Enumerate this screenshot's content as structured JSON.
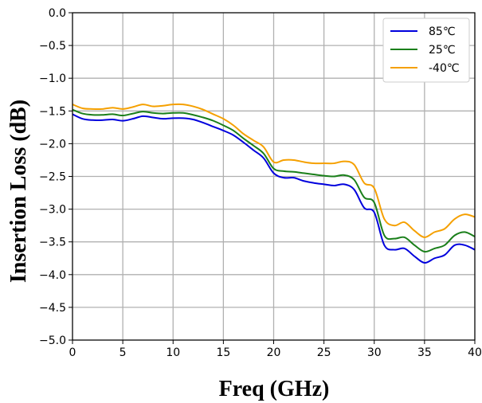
{
  "chart_data": {
    "type": "line",
    "title": "",
    "xlabel": "Freq (GHz)",
    "ylabel": "Insertion Loss (dB)",
    "xlim": [
      0,
      40
    ],
    "ylim": [
      -5.0,
      0.0
    ],
    "xticks": [
      0,
      5,
      10,
      15,
      20,
      25,
      30,
      35,
      40
    ],
    "xtick_labels": [
      "0",
      "5",
      "10",
      "15",
      "20",
      "25",
      "30",
      "35",
      "40"
    ],
    "yticks": [
      0.0,
      -0.5,
      -1.0,
      -1.5,
      -2.0,
      -2.5,
      -3.0,
      -3.5,
      -4.0,
      -4.5,
      -5.0
    ],
    "ytick_labels": [
      "0.0",
      "−0.5",
      "−1.0",
      "−1.5",
      "−2.0",
      "−2.5",
      "−3.0",
      "−3.5",
      "−4.0",
      "−4.5",
      "−5.0"
    ],
    "grid": true,
    "legend_position": "top-right",
    "x": [
      0,
      1,
      2,
      3,
      4,
      5,
      6,
      7,
      8,
      9,
      10,
      11,
      12,
      13,
      14,
      15,
      16,
      17,
      18,
      19,
      20,
      21,
      22,
      23,
      24,
      25,
      26,
      27,
      28,
      29,
      30,
      31,
      32,
      33,
      34,
      35,
      36,
      37,
      38,
      39,
      40
    ],
    "series": [
      {
        "name": "85℃",
        "color": "#0000dd",
        "values": [
          -1.55,
          -1.62,
          -1.64,
          -1.64,
          -1.63,
          -1.65,
          -1.62,
          -1.58,
          -1.6,
          -1.62,
          -1.61,
          -1.61,
          -1.63,
          -1.68,
          -1.74,
          -1.8,
          -1.87,
          -1.98,
          -2.1,
          -2.22,
          -2.45,
          -2.52,
          -2.52,
          -2.57,
          -2.6,
          -2.62,
          -2.64,
          -2.62,
          -2.7,
          -2.98,
          -3.05,
          -3.55,
          -3.62,
          -3.6,
          -3.72,
          -3.82,
          -3.75,
          -3.7,
          -3.55,
          -3.55,
          -3.62
        ]
      },
      {
        "name": "25℃",
        "color": "#1a7f1a",
        "values": [
          -1.48,
          -1.54,
          -1.56,
          -1.56,
          -1.55,
          -1.57,
          -1.54,
          -1.51,
          -1.53,
          -1.54,
          -1.53,
          -1.53,
          -1.56,
          -1.6,
          -1.65,
          -1.72,
          -1.8,
          -1.92,
          -2.03,
          -2.15,
          -2.38,
          -2.42,
          -2.43,
          -2.45,
          -2.47,
          -2.49,
          -2.5,
          -2.48,
          -2.55,
          -2.82,
          -2.9,
          -3.4,
          -3.45,
          -3.43,
          -3.55,
          -3.65,
          -3.6,
          -3.55,
          -3.4,
          -3.35,
          -3.42
        ]
      },
      {
        "name": "-40℃",
        "color": "#f5a000",
        "values": [
          -1.4,
          -1.46,
          -1.47,
          -1.47,
          -1.45,
          -1.47,
          -1.44,
          -1.4,
          -1.43,
          -1.42,
          -1.4,
          -1.4,
          -1.43,
          -1.48,
          -1.55,
          -1.62,
          -1.72,
          -1.85,
          -1.95,
          -2.05,
          -2.28,
          -2.25,
          -2.25,
          -2.28,
          -2.3,
          -2.3,
          -2.3,
          -2.27,
          -2.32,
          -2.6,
          -2.68,
          -3.15,
          -3.25,
          -3.2,
          -3.33,
          -3.43,
          -3.35,
          -3.3,
          -3.15,
          -3.08,
          -3.12
        ]
      }
    ]
  }
}
